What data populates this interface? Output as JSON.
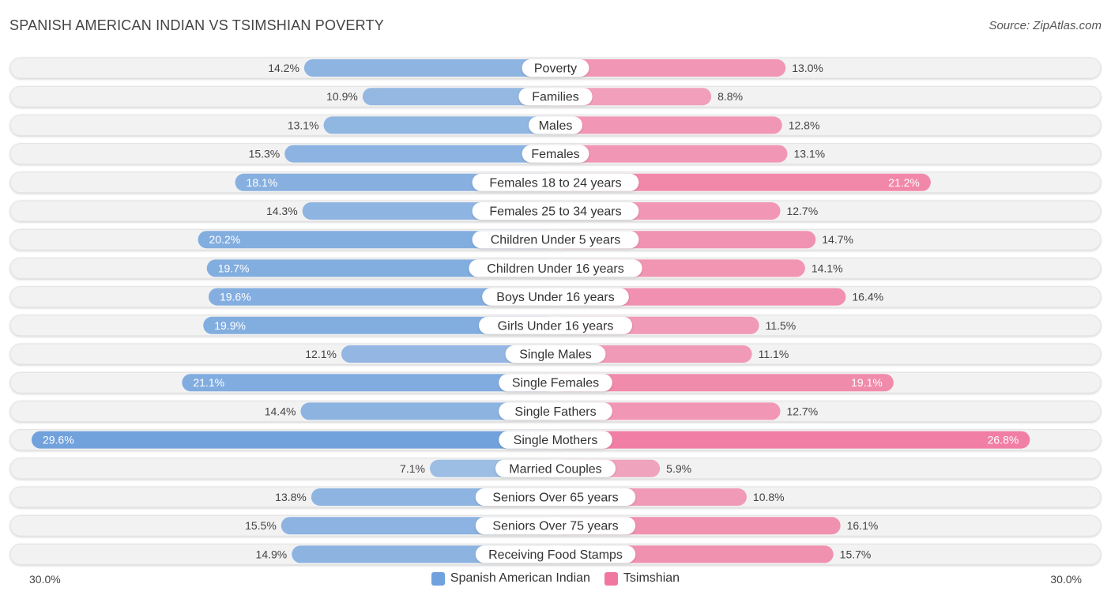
{
  "title": "SPANISH AMERICAN INDIAN VS TSIMSHIAN POVERTY",
  "source": "Source: ZipAtlas.com",
  "axis": {
    "left_label": "30.0%",
    "right_label": "30.0%"
  },
  "legend": [
    {
      "name": "Spanish American Indian",
      "color": "#6fa1dc"
    },
    {
      "name": "Tsimshian",
      "color": "#f0779f"
    }
  ],
  "chart_data": {
    "type": "bar",
    "orientation": "horizontal-diverging",
    "title": "SPANISH AMERICAN INDIAN VS TSIMSHIAN POVERTY",
    "xlim": [
      -30,
      30
    ],
    "unit": "%",
    "categories": [
      "Poverty",
      "Families",
      "Males",
      "Females",
      "Females 18 to 24 years",
      "Females 25 to 34 years",
      "Children Under 5 years",
      "Children Under 16 years",
      "Boys Under 16 years",
      "Girls Under 16 years",
      "Single Males",
      "Single Females",
      "Single Fathers",
      "Single Mothers",
      "Married Couples",
      "Seniors Over 65 years",
      "Seniors Over 75 years",
      "Receiving Food Stamps"
    ],
    "series": [
      {
        "name": "Spanish American Indian",
        "values": [
          14.2,
          10.9,
          13.1,
          15.3,
          18.1,
          14.3,
          20.2,
          19.7,
          19.6,
          19.9,
          12.1,
          21.1,
          14.4,
          29.6,
          7.1,
          13.8,
          15.5,
          14.9
        ],
        "labels": [
          "14.2%",
          "10.9%",
          "13.1%",
          "15.3%",
          "18.1%",
          "14.3%",
          "20.2%",
          "19.7%",
          "19.6%",
          "19.9%",
          "12.1%",
          "21.1%",
          "14.4%",
          "29.6%",
          "7.1%",
          "13.8%",
          "15.5%",
          "14.9%"
        ]
      },
      {
        "name": "Tsimshian",
        "values": [
          13.0,
          8.8,
          12.8,
          13.1,
          21.2,
          12.7,
          14.7,
          14.1,
          16.4,
          11.5,
          11.1,
          19.1,
          12.7,
          26.8,
          5.9,
          10.8,
          16.1,
          15.7
        ],
        "labels": [
          "13.0%",
          "8.8%",
          "12.8%",
          "13.1%",
          "21.2%",
          "12.7%",
          "14.7%",
          "14.1%",
          "16.4%",
          "11.5%",
          "11.1%",
          "19.1%",
          "12.7%",
          "26.8%",
          "5.9%",
          "10.8%",
          "16.1%",
          "15.7%"
        ]
      }
    ]
  }
}
